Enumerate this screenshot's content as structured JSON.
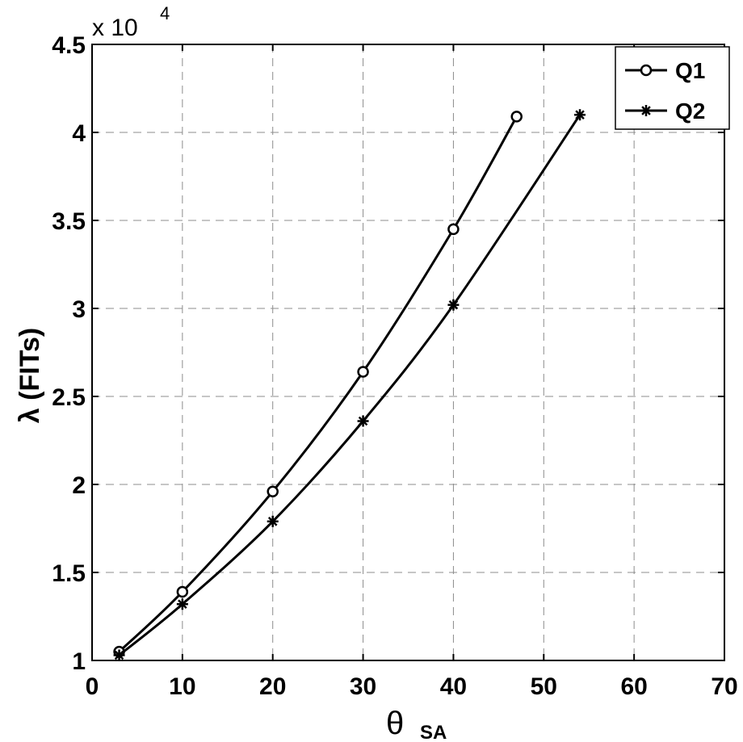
{
  "chart_data": {
    "type": "line",
    "xlabel": "θ",
    "xlabel_sub": "SA",
    "ylabel": "λ  (FITs)",
    "y_multiplier_base": "x 10",
    "y_multiplier_exp": "4",
    "xlim": [
      0,
      70
    ],
    "ylim": [
      1,
      4.5
    ],
    "xticks": [
      0,
      10,
      20,
      30,
      40,
      50,
      60,
      70
    ],
    "yticks": [
      1,
      1.5,
      2,
      2.5,
      3,
      3.5,
      4,
      4.5
    ],
    "ytick_labels": [
      "1",
      "1.5",
      "2",
      "2.5",
      "3",
      "3.5",
      "4",
      "4.5"
    ],
    "grid": true,
    "legend_position": "top-right",
    "series": [
      {
        "name": "Q1",
        "marker": "circle",
        "x": [
          3,
          10,
          20,
          30,
          40,
          47
        ],
        "y": [
          1.05,
          1.39,
          1.96,
          2.64,
          3.45,
          4.09
        ]
      },
      {
        "name": "Q2",
        "marker": "asterisk",
        "x": [
          3,
          10,
          20,
          30,
          40,
          54
        ],
        "y": [
          1.03,
          1.32,
          1.79,
          2.36,
          3.02,
          4.1
        ]
      }
    ]
  }
}
